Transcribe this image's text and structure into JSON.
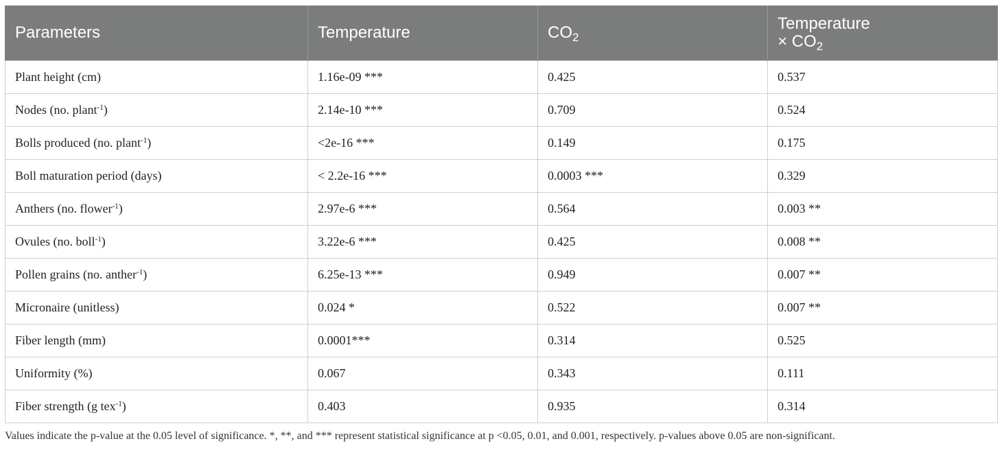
{
  "header": {
    "parameters": "Parameters",
    "temperature": "Temperature",
    "co2_base": "CO",
    "co2_sub": "2",
    "interaction_line1": "Temperature",
    "interaction_line2_base": "× CO",
    "interaction_line2_sub": "2"
  },
  "rows": [
    {
      "label": "Plant height (cm)",
      "label_sup": "",
      "label_tail": "",
      "temperature": "1.16e-09 ***",
      "co2": "0.425",
      "interaction": "0.537"
    },
    {
      "label": "Nodes (no. plant",
      "label_sup": "-1",
      "label_tail": ")",
      "temperature": "2.14e-10 ***",
      "co2": "0.709",
      "interaction": "0.524"
    },
    {
      "label": "Bolls produced (no. plant",
      "label_sup": "-1",
      "label_tail": ")",
      "temperature": "<2e-16 ***",
      "co2": "0.149",
      "interaction": "0.175"
    },
    {
      "label": "Boll maturation period (days)",
      "label_sup": "",
      "label_tail": "",
      "temperature": "< 2.2e-16 ***",
      "co2": "0.0003 ***",
      "interaction": "0.329"
    },
    {
      "label": "Anthers (no. flower",
      "label_sup": "-1",
      "label_tail": ")",
      "temperature": "2.97e-6 ***",
      "co2": "0.564",
      "interaction": "0.003 **"
    },
    {
      "label": "Ovules (no. boll",
      "label_sup": "-1",
      "label_tail": ")",
      "temperature": "3.22e-6 ***",
      "co2": "0.425",
      "interaction": "0.008 **"
    },
    {
      "label": "Pollen grains (no. anther",
      "label_sup": "-1",
      "label_tail": ")",
      "temperature": "6.25e-13 ***",
      "co2": "0.949",
      "interaction": "0.007 **"
    },
    {
      "label": "Micronaire (unitless)",
      "label_sup": "",
      "label_tail": "",
      "temperature": "0.024 *",
      "co2": "0.522",
      "interaction": "0.007 **"
    },
    {
      "label": "Fiber length (mm)",
      "label_sup": "",
      "label_tail": "",
      "temperature": "0.0001***",
      "co2": "0.314",
      "interaction": "0.525"
    },
    {
      "label": "Uniformity (%)",
      "label_sup": "",
      "label_tail": "",
      "temperature": "0.067",
      "co2": "0.343",
      "interaction": "0.111"
    },
    {
      "label": "Fiber strength (g tex",
      "label_sup": "-1",
      "label_tail": ")",
      "temperature": "0.403",
      "co2": "0.935",
      "interaction": "0.314"
    }
  ],
  "footnote": "Values indicate the p-value at the 0.05 level of significance. *, **, and *** represent statistical significance at p <0.05, 0.01, and 0.001, respectively. p-values above 0.05 are non-significant.",
  "colors": {
    "header_bg": "#7b7d7c",
    "header_text": "#ffffff",
    "border": "#cfcfcf"
  }
}
